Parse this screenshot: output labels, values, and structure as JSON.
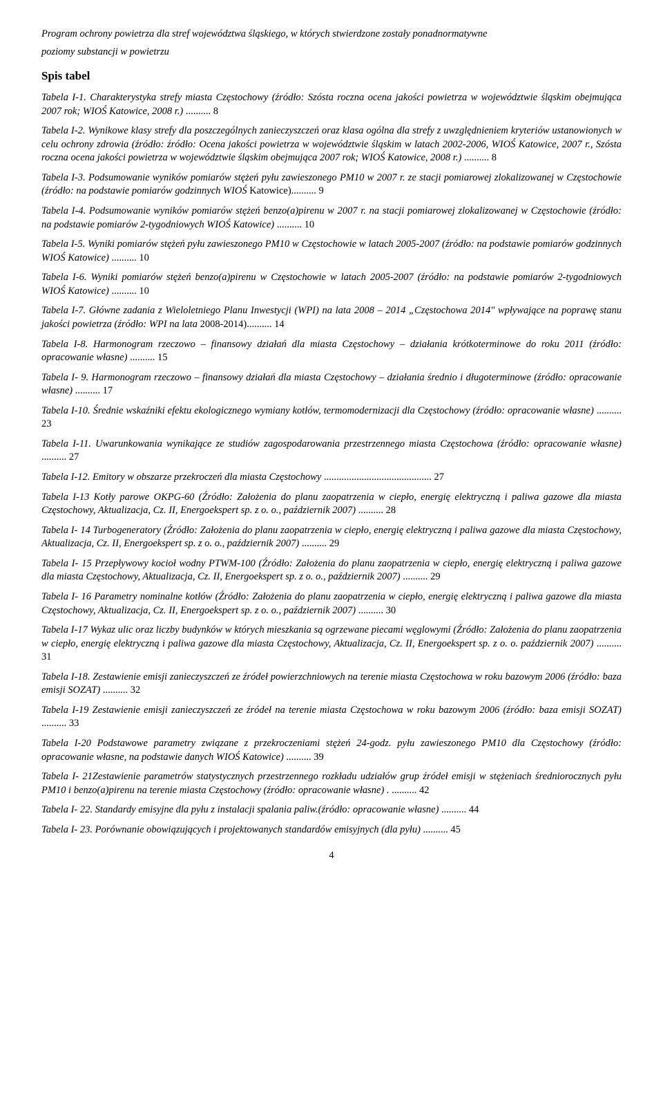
{
  "header": {
    "line1": "Program ochrony powietrza dla stref województwa śląskiego, w których stwierdzone zostały ponadnormatywne",
    "line2": "poziomy substancji w powietrzu"
  },
  "section_title": "Spis tabel",
  "entries": [
    {
      "prefix": "Tabela I-1.",
      "body_italic": " Charakterystyka strefy miasta Częstochowy (źródło: Szósta roczna ocena jakości powietrza w województwie śląskim obejmująca 2007 rok; WIOŚ Katowice, 2008 r.) ",
      "suffix": "",
      "page": "8"
    },
    {
      "prefix": "Tabela I-2.",
      "body_italic": " Wynikowe klasy strefy dla poszczególnych zanieczyszczeń oraz klasa ogólna dla strefy z uwzględnieniem kryteriów ustanowionych w celu ochrony zdrowia (źródło: źródło: Ocena jakości powietrza w województwie śląskim w latach 2002-2006, WIOŚ Katowice, 2007 r., Szósta roczna ocena jakości powietrza w województwie śląskim obejmująca 2007 rok; WIOŚ Katowice, 2008 r.) ",
      "suffix": "",
      "page": "8"
    },
    {
      "prefix": "Tabela I-3.",
      "body_italic": " Podsumowanie wyników pomiarów stężeń pyłu zawieszonego PM10 w 2007 r. ze stacji pomiarowej zlokalizowanej w Częstochowie (źródło: na podstawie pomiarów godzinnych WIOŚ ",
      "suffix": "Katowice)",
      "page": "9"
    },
    {
      "prefix": "Tabela I-4.",
      "body_italic": " Podsumowanie wyników pomiarów stężeń benzo(a)pirenu w 2007 r. na stacji pomiarowej zlokalizowanej w Częstochowie (źródło: na podstawie pomiarów 2-tygodniowych WIOŚ Katowice) ",
      "suffix": "",
      "page": "10"
    },
    {
      "prefix": "Tabela I-5.",
      "body_italic": " Wyniki pomiarów stężeń pyłu zawieszonego PM10 w Częstochowie w latach 2005-2007 (źródło: na podstawie pomiarów godzinnych WIOŚ Katowice) ",
      "suffix": "",
      "page": "10"
    },
    {
      "prefix": "Tabela I-6.",
      "body_italic": " Wyniki pomiarów stężeń benzo(a)pirenu w Częstochowie w latach 2005-2007 (źródło: na podstawie pomiarów 2-tygodniowych WIOŚ Katowice) ",
      "suffix": "",
      "page": "10"
    },
    {
      "prefix": "Tabela I-7.",
      "body_italic": " Główne zadania z Wieloletniego Planu Inwestycji (WPI) na lata 2008 – 2014 „Częstochowa 2014\" wpływające na poprawę stanu jakości powietrza (źródło: WPI na lata ",
      "suffix": "2008-2014)",
      "page": "14"
    },
    {
      "prefix": "Tabela I-8.",
      "body_italic": " Harmonogram rzeczowo – finansowy działań dla miasta Częstochowy – działania krótkoterminowe do roku 2011 (źródło: opracowanie własne) ",
      "suffix": "",
      "page": "15"
    },
    {
      "prefix": "Tabela I- 9.",
      "body_italic": " Harmonogram rzeczowo – finansowy działań dla miasta Częstochowy – działania średnio i długoterminowe (źródło: opracowanie własne) ",
      "suffix": "",
      "page": "17"
    },
    {
      "prefix": "Tabela I-10.",
      "body_italic": " Średnie wskaźniki efektu ekologicznego wymiany kotłów, termomodernizacji dla Częstochowy (źródło: opracowanie własne) ",
      "suffix": "",
      "page": "23"
    },
    {
      "prefix": "Tabela I-11.",
      "body_italic": " Uwarunkowania wynikające ze studiów zagospodarowania przestrzennego miasta Częstochowa (źródło: opracowanie własne) ",
      "suffix": "",
      "page": "27"
    },
    {
      "prefix": "Tabela I-12.",
      "body_italic": " Emitory w obszarze przekroczeń dla miasta Częstochowy ",
      "suffix": "",
      "page": "27"
    },
    {
      "prefix": "Tabela I-13",
      "body_italic": " Kotły parowe OKPG-60 (Źródło: Założenia do planu zaopatrzenia w ciepło, energię elektryczną i paliwa gazowe dla miasta Częstochowy, Aktualizacja, Cz. II, Energoekspert sp. z o. o., październik 2007) ",
      "suffix": "",
      "page": "28"
    },
    {
      "prefix": "Tabela I- 14",
      "body_italic": " Turbogeneratory (Źródło: Założenia do planu zaopatrzenia w ciepło, energię elektryczną i paliwa gazowe dla miasta Częstochowy, Aktualizacja, Cz. II, Energoekspert sp. z o. o., październik 2007) ",
      "suffix": "",
      "page": "29"
    },
    {
      "prefix": "Tabela I- 15",
      "body_italic": " Przepływowy kocioł wodny PTWM-100 (Źródło: Założenia do planu zaopatrzenia w ciepło, energię elektryczną i paliwa gazowe dla miasta Częstochowy, Aktualizacja, Cz. II, Energoekspert sp. z o. o., październik 2007) ",
      "suffix": "",
      "page": "29"
    },
    {
      "prefix": "Tabela I- 16",
      "body_italic": " Parametry nominalne kotłów (Źródło: Założenia do planu zaopatrzenia w ciepło, energię elektryczną i paliwa gazowe dla miasta Częstochowy, Aktualizacja, Cz. II, Energoekspert sp. z o. o., październik 2007) ",
      "suffix": "",
      "page": "30"
    },
    {
      "prefix": "Tabela I-17",
      "body_italic": " Wykaz ulic oraz liczby budynków w których mieszkania są ogrzewane piecami węglowymi (Źródło: Założenia do planu zaopatrzenia w ciepło, energię elektryczną i paliwa gazowe dla miasta Częstochowy, Aktualizacja, Cz. II, Energoekspert sp. z o. o. październik 2007) ",
      "suffix": "",
      "page": "31"
    },
    {
      "prefix": "Tabela I-18.",
      "body_italic": " Zestawienie emisji zanieczyszczeń ze źródeł powierzchniowych na terenie miasta Częstochowa w roku bazowym 2006 (źródło: baza emisji SOZAT) ",
      "suffix": "",
      "page": "32"
    },
    {
      "prefix": "Tabela I-19",
      "body_italic": " Zestawienie emisji zanieczyszczeń ze źródeł na terenie miasta Częstochowa w roku bazowym 2006 (źródło: baza emisji SOZAT) ",
      "suffix": "",
      "page": "33"
    },
    {
      "prefix": "Tabela I-20",
      "body_italic": " Podstawowe parametry związane z przekroczeniami stężeń 24-godz. pyłu zawieszonego PM10 dla Częstochowy (źródło: opracowanie własne, na podstawie danych WIOŚ Katowice) ",
      "suffix": "",
      "page": "39"
    },
    {
      "prefix": "Tabela I- 21",
      "body_italic": "Zestawienie parametrów statystycznych przestrzennego rozkładu udziałów grup źródeł emisji w stężeniach średniorocznych pyłu PM10 i benzo(a)pirenu na terenie miasta Częstochowy (źródło: opracowanie własne) . ",
      "suffix": "",
      "page": "42"
    },
    {
      "prefix": "Tabela I- 22.",
      "body_italic": " Standardy emisyjne dla pyłu z instalacji spalania paliw.(źródło: opracowanie własne) ",
      "suffix": "",
      "page": "44"
    },
    {
      "prefix": "Tabela I- 23.",
      "body_italic": " Porównanie obowiązujących i projektowanych standardów emisyjnych (dla pyłu) ",
      "suffix": "",
      "page": "45"
    }
  ],
  "page_number": "4"
}
